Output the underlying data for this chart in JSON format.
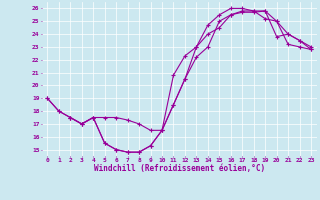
{
  "bg_color": "#cce8f0",
  "line_color": "#990099",
  "xlabel": "Windchill (Refroidissement éolien,°C)",
  "ylabel_ticks": [
    15,
    16,
    17,
    18,
    19,
    20,
    21,
    22,
    23,
    24,
    25,
    26
  ],
  "xlim": [
    -0.5,
    23.5
  ],
  "ylim": [
    14.5,
    26.5
  ],
  "xticks": [
    0,
    1,
    2,
    3,
    4,
    5,
    6,
    7,
    8,
    9,
    10,
    11,
    12,
    13,
    14,
    15,
    16,
    17,
    18,
    19,
    20,
    21,
    22,
    23
  ],
  "line1_x": [
    0,
    1,
    2,
    3,
    4,
    5,
    6,
    7,
    8,
    9,
    10,
    11,
    12,
    13,
    14,
    15,
    16,
    17,
    18,
    19,
    20,
    21,
    22,
    23
  ],
  "line1_y": [
    19,
    18,
    17.5,
    17,
    17.5,
    15.5,
    15,
    14.8,
    14.8,
    15.3,
    16.5,
    18.5,
    20.5,
    23,
    24,
    24.5,
    25.5,
    25.7,
    25.7,
    25.8,
    23.8,
    24.0,
    23.5,
    23.0
  ],
  "line2_x": [
    0,
    1,
    2,
    3,
    4,
    5,
    6,
    7,
    8,
    9,
    10,
    11,
    12,
    13,
    14,
    15,
    16,
    17,
    18,
    19,
    20,
    21,
    22,
    23
  ],
  "line2_y": [
    19,
    18,
    17.5,
    17,
    17.5,
    15.5,
    15,
    14.8,
    14.8,
    15.3,
    16.5,
    20.8,
    22.3,
    23.0,
    24.7,
    25.5,
    26.0,
    26.0,
    25.8,
    25.2,
    25.0,
    24.0,
    23.5,
    22.8
  ],
  "line3_x": [
    2,
    3,
    4,
    5,
    6,
    7,
    8,
    9,
    10,
    11,
    12,
    13,
    14,
    15,
    16,
    17,
    18,
    19,
    20,
    21,
    22,
    23
  ],
  "line3_y": [
    17.5,
    17.0,
    17.5,
    17.5,
    17.5,
    17.3,
    17.0,
    16.5,
    16.5,
    18.5,
    20.5,
    22.2,
    23.0,
    25.0,
    25.5,
    25.8,
    25.8,
    25.8,
    25.0,
    23.2,
    23.0,
    22.8
  ]
}
